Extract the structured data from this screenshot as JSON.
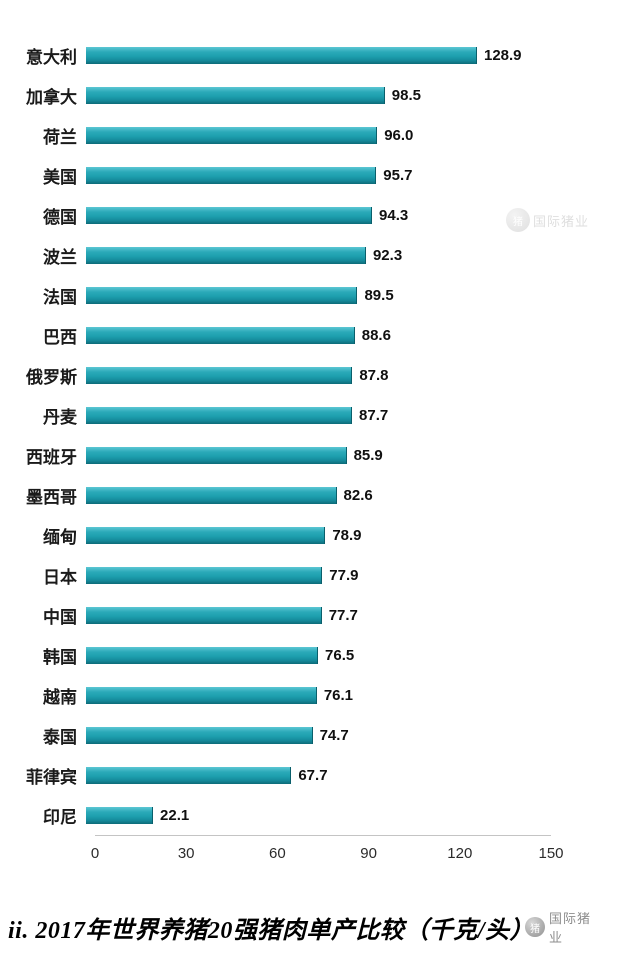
{
  "chart_data": {
    "type": "bar",
    "orientation": "horizontal",
    "title": "ii. 2017年世界养猪20强猪肉单产比较（千克/头）",
    "categories": [
      "意大利",
      "加拿大",
      "荷兰",
      "美国",
      "德国",
      "波兰",
      "法国",
      "巴西",
      "俄罗斯",
      "丹麦",
      "西班牙",
      "墨西哥",
      "缅甸",
      "日本",
      "中国",
      "韩国",
      "越南",
      "泰国",
      "菲律宾",
      "印尼"
    ],
    "values": [
      128.9,
      98.5,
      96.0,
      95.7,
      94.3,
      92.3,
      89.5,
      88.6,
      87.8,
      87.7,
      85.9,
      82.6,
      78.9,
      77.9,
      77.7,
      76.5,
      76.1,
      74.7,
      67.7,
      22.1
    ],
    "value_labels": [
      "128.9",
      "98.5",
      "96.0",
      "95.7",
      "94.3",
      "92.3",
      "89.5",
      "88.6",
      "87.8",
      "87.7",
      "85.9",
      "82.6",
      "78.9",
      "77.9",
      "77.7",
      "76.5",
      "76.1",
      "74.7",
      "67.7",
      "22.1"
    ],
    "x_ticks": [
      0,
      30,
      60,
      90,
      120,
      150
    ],
    "xlim": [
      0,
      150
    ],
    "bar_color": "#1d9fae",
    "grid": false,
    "legend": "none"
  },
  "caption": {
    "title": "ii. 2017年世界养猪20强猪肉单产比较（千克/头）"
  },
  "watermark": {
    "text": "国际猪业",
    "logo_glyph": "猪"
  }
}
